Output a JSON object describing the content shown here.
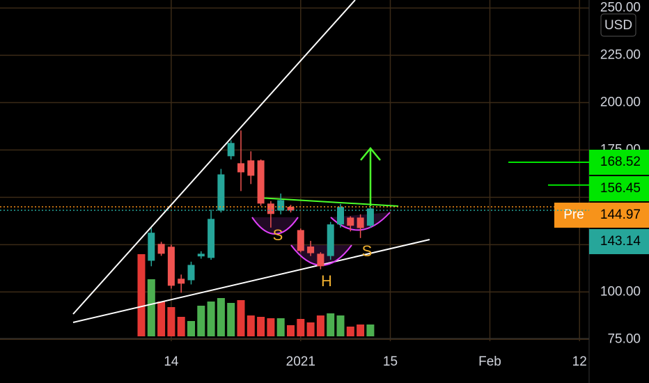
{
  "chart_data": {
    "type": "candlestick",
    "categories": [
      null,
      null,
      null,
      "14",
      null,
      null,
      null,
      null,
      null,
      null,
      null,
      null,
      null,
      null,
      null,
      null,
      "2021",
      null,
      null,
      null,
      null,
      null,
      null,
      null,
      null,
      "15",
      null,
      null,
      null,
      null,
      null,
      null,
      null,
      null,
      null,
      "Feb",
      null,
      null,
      null,
      null,
      null,
      null,
      null,
      null,
      "12"
    ],
    "open": [
      null,
      116.5,
      125.4,
      123.9,
      107,
      106.2,
      118.8,
      118,
      143,
      171.7,
      168,
      169.5,
      169.5,
      146.7,
      143,
      145,
      132.7,
      124,
      120.2,
      119,
      135.7,
      139.3,
      139.3,
      135,
      null,
      null,
      null,
      null,
      null,
      null,
      null,
      null,
      null,
      null,
      null,
      null,
      null,
      null,
      null,
      null,
      null,
      null,
      null,
      null,
      null
    ],
    "high": [
      null,
      133.8,
      126.5,
      125,
      109.2,
      116,
      121.5,
      143.5,
      165,
      180.1,
      185.3,
      174.3,
      170,
      148,
      152,
      146,
      133.5,
      127,
      121,
      137,
      146.5,
      140,
      141,
      145,
      null,
      null,
      null,
      null,
      null,
      null,
      null,
      null,
      null,
      null,
      null,
      null,
      null,
      null,
      null,
      null,
      null,
      null,
      null,
      null,
      null
    ],
    "low": [
      null,
      113.6,
      119.1,
      101.8,
      99.6,
      104,
      117.6,
      117,
      142,
      170,
      153.3,
      157,
      145.5,
      134,
      141,
      142,
      121,
      119,
      112,
      117,
      134,
      132,
      128.5,
      134,
      null,
      null,
      null,
      null,
      null,
      null,
      null,
      null,
      null,
      null,
      null,
      null,
      null,
      null,
      null,
      null,
      null,
      null,
      null,
      null,
      null
    ],
    "close": [
      null,
      131.3,
      120.2,
      103.3,
      104.4,
      114.3,
      120.2,
      138.6,
      162.1,
      178.7,
      163.2,
      161.4,
      146.7,
      141.2,
      148.5,
      143,
      121.7,
      120.5,
      113.6,
      135.7,
      144.9,
      135,
      133.8,
      144.1,
      null,
      null,
      null,
      null,
      null,
      null,
      null,
      null,
      null,
      null,
      null,
      null,
      null,
      null,
      null,
      null,
      null,
      null,
      null,
      null,
      null
    ],
    "volume": [
      118,
      82,
      50,
      42,
      28,
      22,
      44,
      50,
      55,
      48,
      52,
      30,
      28,
      26,
      26,
      16,
      25,
      20,
      30,
      33,
      30,
      14,
      17,
      17,
      null,
      null,
      null,
      null,
      null,
      null,
      null,
      null,
      null,
      null,
      null,
      null,
      null,
      null,
      null,
      null,
      null,
      null,
      null,
      null,
      null
    ],
    "volume_lim": [
      0,
      120
    ],
    "up_color": "#26a69a",
    "down_color": "#ef5350",
    "volume_up_color": "#4caf50",
    "volume_down_color": "#e53935",
    "ylim": [
      74,
      252
    ],
    "yticks": [
      {
        "value": 75,
        "label": "75.00"
      },
      {
        "value": 100,
        "label": "100.00"
      },
      {
        "value": 125,
        "label": "125.00"
      },
      {
        "value": 150,
        "label": "150.00"
      },
      {
        "value": 175,
        "label": "175.00"
      },
      {
        "value": 200,
        "label": "200.00"
      },
      {
        "value": 225,
        "label": "225.00"
      },
      {
        "value": 250,
        "label": "250.00"
      }
    ],
    "grid": true,
    "grid_color": "#3b2a17",
    "currency": "USD",
    "price_labels": [
      {
        "value": 168.52,
        "color": "#00e600",
        "line": true
      },
      {
        "value": 156.45,
        "color": "#00e600",
        "line": true
      },
      {
        "value": 144.97,
        "tag": "Pre",
        "color": "#f7931a",
        "dotted": true
      },
      {
        "value": 143.14,
        "color": "#26a69a",
        "dotted": true
      }
    ],
    "annotations": [
      "S",
      "H",
      "S"
    ]
  }
}
